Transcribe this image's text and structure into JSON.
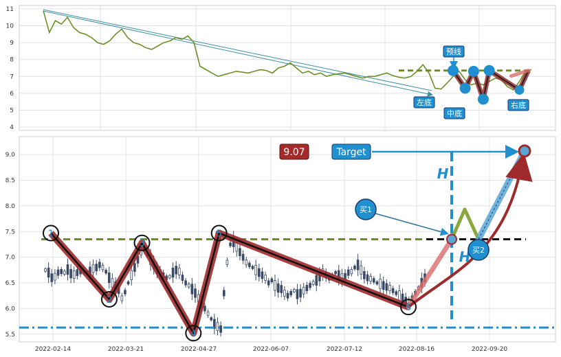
{
  "chart_data": [
    {
      "type": "line",
      "panel": "overview",
      "ylim": [
        3.8,
        11.2
      ],
      "yticks": [
        4,
        5,
        6,
        7,
        8,
        9,
        10,
        11
      ],
      "grid": true,
      "series": [
        {
          "values": [
            10.9,
            9.6,
            10.3,
            10.1,
            10.5,
            9.9,
            9.6,
            9.5,
            9.3,
            9.0,
            8.9,
            9.1,
            9.5,
            9.8,
            9.3,
            9.0,
            8.9,
            8.7,
            8.6,
            8.8,
            9.0,
            9.1,
            9.3,
            9.2,
            9.4,
            9.0,
            7.6,
            7.4,
            7.2,
            7.0,
            7.1,
            7.2,
            7.3,
            7.25,
            7.2,
            7.3,
            7.4,
            7.35,
            7.2,
            7.5,
            7.6,
            7.8,
            7.5,
            7.2,
            7.3,
            7.1,
            7.2,
            7.0,
            7.1,
            7.15,
            7.2,
            7.1,
            7.0,
            6.9,
            7.0,
            7.0,
            7.1,
            7.2,
            7.05,
            6.95,
            6.9,
            7.0,
            7.3,
            7.7,
            7.2,
            6.3,
            6.25,
            6.6,
            7.0,
            7.3,
            6.8,
            6.5,
            6.6,
            6.5,
            6.7,
            6.9,
            6.8,
            6.4,
            6.2,
            6.7,
            7.3,
            7.4
          ]
        }
      ],
      "annotations": {
        "neckline": 7.35,
        "pattern_points": [
          [
            68,
            7.35
          ],
          [
            70,
            6.3
          ],
          [
            71.4,
            7.3
          ],
          [
            73,
            5.65
          ],
          [
            74,
            7.35
          ],
          [
            79,
            6.2
          ],
          [
            80.5,
            7.35
          ]
        ],
        "labels": {
          "left_bottom": "左底",
          "mid_bottom": "中底",
          "right_bottom": "右底",
          "forecast": "预线"
        }
      }
    },
    {
      "type": "candlestick",
      "panel": "detail",
      "ylim": [
        5.35,
        9.35
      ],
      "yticks": [
        "5.5",
        "6.0",
        "6.5",
        "7.0",
        "7.5",
        "8.0",
        "8.5",
        "9.0"
      ],
      "xticks": [
        "2022-02-14",
        "2022-03-21",
        "2022-04-27",
        "2022-06-07",
        "2022-07-12",
        "2022-08-16",
        "2022-09-20"
      ],
      "grid": true,
      "candles": [
        6.75,
        6.7,
        6.6,
        6.62,
        6.7,
        6.72,
        6.7,
        6.76,
        6.68,
        6.66,
        6.7,
        6.72,
        6.74,
        6.7,
        6.72,
        6.78,
        6.8,
        6.85,
        6.8,
        6.72,
        6.6,
        6.5,
        6.45,
        6.35,
        6.2,
        6.32,
        6.5,
        6.65,
        6.8,
        6.95,
        7.1,
        7.15,
        7.05,
        6.95,
        6.85,
        6.75,
        6.7,
        6.65,
        6.6,
        6.62,
        6.7,
        6.75,
        6.72,
        6.6,
        6.5,
        6.45,
        6.38,
        6.3,
        6.2,
        6.1,
        6.0,
        5.9,
        5.8,
        5.7,
        5.65,
        5.6,
        6.3,
        6.9,
        7.25,
        7.3,
        7.2,
        7.1,
        7.0,
        6.9,
        6.85,
        6.8,
        6.75,
        6.7,
        6.65,
        6.6,
        6.5,
        6.55,
        6.45,
        6.4,
        6.38,
        6.3,
        6.25,
        6.3,
        6.35,
        6.28,
        6.3,
        6.35,
        6.4,
        6.45,
        6.5,
        6.55,
        6.62,
        6.7,
        6.65,
        6.6,
        6.62,
        6.7,
        6.65,
        6.6,
        6.62,
        6.7,
        6.72,
        6.8,
        6.85,
        6.75,
        6.65,
        6.6,
        6.58,
        6.55,
        6.5,
        6.48,
        6.45,
        6.42,
        6.4,
        6.35,
        6.3,
        6.25,
        6.2,
        6.15,
        6.1,
        6.2,
        6.3,
        6.4,
        6.5,
        6.6
      ],
      "pattern": {
        "points": [
          [
            0,
            7.47,
            "1"
          ],
          [
            12.5,
            6.18,
            "2"
          ],
          [
            19.5,
            7.28,
            "3"
          ],
          [
            30.5,
            5.52,
            "4"
          ],
          [
            36,
            7.47,
            "5"
          ],
          [
            76.5,
            6.03,
            "6"
          ]
        ],
        "neckline": 7.35,
        "support": 5.63,
        "target_value": "9.07",
        "target_label": "Target",
        "buy1_label": "买1",
        "buy2_label": "买2",
        "height_label": "H"
      }
    }
  ],
  "colors": {
    "price_line": "#6b8e23",
    "pattern_stroke": "#9e2a2b",
    "accent_blue": "#1f77b4",
    "neckline": "#6b8e23",
    "support": "#1f8fd0",
    "candle": "#3a4a66",
    "target_box": "#1f8fd0",
    "value_box": "#a52a2a"
  }
}
